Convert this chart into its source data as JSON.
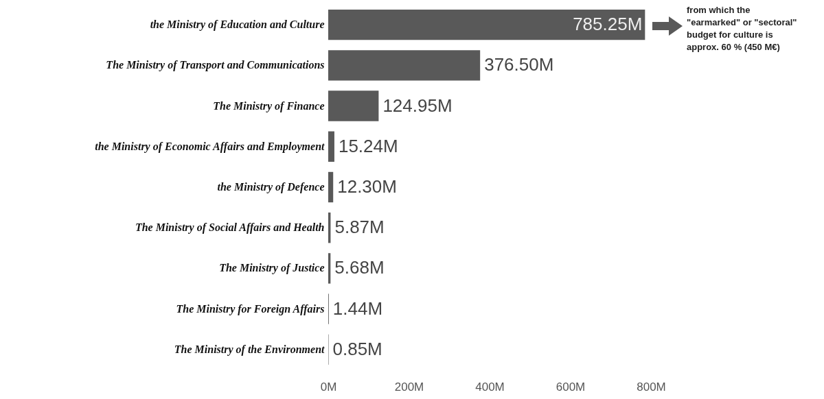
{
  "chart_data": {
    "type": "bar",
    "orientation": "horizontal",
    "categories": [
      "the Ministry of Education and Culture",
      "The Ministry of Transport and Communications",
      "The Ministry of Finance",
      "the Ministry of Economic Affairs and Employment",
      "the Ministry of Defence",
      "The Ministry of Social Affairs and Health",
      "The Ministry of Justice",
      "The Ministry for Foreign Affairs",
      "The Ministry of the Environment"
    ],
    "values": [
      785.25,
      376.5,
      124.95,
      15.24,
      12.3,
      5.87,
      5.68,
      1.44,
      0.85
    ],
    "value_labels": [
      "785.25M",
      "376.50M",
      "124.95M",
      "15.24M",
      "12.30M",
      "5.87M",
      "5.68M",
      "1.44M",
      "0.85M"
    ],
    "color": "#595959",
    "xlim": [
      0,
      800
    ],
    "xticks": [
      {
        "value": 0,
        "label": "0M"
      },
      {
        "value": 200,
        "label": "200M"
      },
      {
        "value": 400,
        "label": "400M"
      },
      {
        "value": 600,
        "label": "600M"
      },
      {
        "value": 800,
        "label": "800M"
      }
    ],
    "annotations": [
      "from which the \"earmarked\" or \"sectoral\" budget for culture is approx. 60 % (450 M€)"
    ]
  }
}
